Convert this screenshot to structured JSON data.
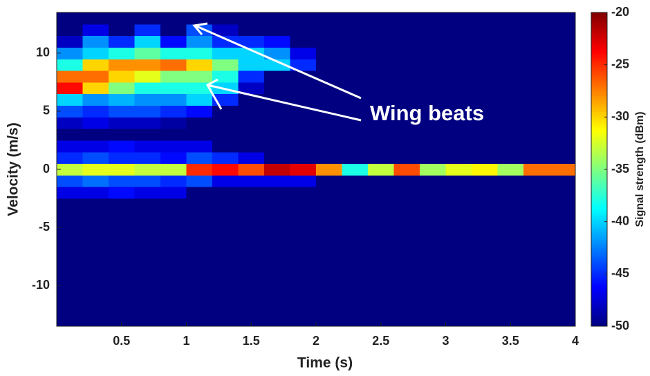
{
  "chart_data": {
    "type": "heatmap",
    "xlabel": "Time (s)",
    "ylabel": "Velocity (m/s)",
    "colorbar_label": "Signal strength (dBm)",
    "annotation": "Wing beats",
    "colormap": "jet",
    "clim": [
      -50,
      -20
    ],
    "cticks": [
      -20,
      -25,
      -30,
      -35,
      -40,
      -45,
      -50
    ],
    "xlim": [
      0,
      4
    ],
    "xticks": [
      0.5,
      1,
      1.5,
      2,
      2.5,
      3,
      3.5,
      4
    ],
    "ylim": [
      -13.5,
      13.5
    ],
    "yticks": [
      10,
      5,
      0,
      -5,
      -10
    ],
    "x_bins": [
      0,
      0.2,
      0.4,
      0.6,
      0.8,
      1,
      1.2,
      1.4,
      1.6,
      1.8,
      2,
      2.2,
      2.4,
      2.6,
      2.8,
      3,
      3.2,
      3.4,
      3.6,
      3.8,
      4
    ],
    "y_bins": [
      -13.5,
      -12.5,
      -11.5,
      -10.5,
      -9.5,
      -8.5,
      -7.5,
      -6.5,
      -5.5,
      -4.5,
      -3.5,
      -2.5,
      -1.5,
      -0.5,
      0.5,
      1.5,
      2.5,
      3.5,
      4.5,
      5.5,
      6.5,
      7.5,
      8.5,
      9.5,
      10.5,
      11.5,
      12.5,
      13.5
    ],
    "z": [
      [
        -50,
        -50,
        -50,
        -50,
        -50,
        -50,
        -50,
        -50,
        -50,
        -50,
        -50,
        -50,
        -50,
        -50,
        -50,
        -50,
        -50,
        -50,
        -50,
        -50
      ],
      [
        -50,
        -50,
        -50,
        -50,
        -50,
        -50,
        -50,
        -50,
        -50,
        -50,
        -50,
        -50,
        -50,
        -50,
        -50,
        -50,
        -50,
        -50,
        -50,
        -50
      ],
      [
        -50,
        -50,
        -50,
        -50,
        -50,
        -50,
        -50,
        -50,
        -50,
        -50,
        -50,
        -50,
        -50,
        -50,
        -50,
        -50,
        -50,
        -50,
        -50,
        -50
      ],
      [
        -50,
        -50,
        -50,
        -50,
        -50,
        -50,
        -50,
        -50,
        -50,
        -50,
        -50,
        -50,
        -50,
        -50,
        -50,
        -50,
        -50,
        -50,
        -50,
        -50
      ],
      [
        -50,
        -50,
        -50,
        -50,
        -50,
        -50,
        -50,
        -50,
        -50,
        -50,
        -50,
        -50,
        -50,
        -50,
        -50,
        -50,
        -50,
        -50,
        -50,
        -50
      ],
      [
        -50,
        -50,
        -50,
        -50,
        -50,
        -50,
        -50,
        -50,
        -50,
        -50,
        -50,
        -50,
        -50,
        -50,
        -50,
        -50,
        -50,
        -50,
        -50,
        -50
      ],
      [
        -50,
        -50,
        -50,
        -50,
        -50,
        -50,
        -50,
        -50,
        -50,
        -50,
        -50,
        -50,
        -50,
        -50,
        -50,
        -50,
        -50,
        -50,
        -50,
        -50
      ],
      [
        -50,
        -50,
        -50,
        -50,
        -50,
        -50,
        -50,
        -50,
        -50,
        -50,
        -50,
        -50,
        -50,
        -50,
        -50,
        -50,
        -50,
        -50,
        -50,
        -50
      ],
      [
        -50,
        -50,
        -50,
        -50,
        -50,
        -50,
        -50,
        -50,
        -50,
        -50,
        -50,
        -50,
        -50,
        -50,
        -50,
        -50,
        -50,
        -50,
        -50,
        -50
      ],
      [
        -50,
        -50,
        -50,
        -50,
        -50,
        -50,
        -50,
        -50,
        -50,
        -50,
        -50,
        -50,
        -50,
        -50,
        -50,
        -50,
        -50,
        -50,
        -50,
        -50
      ],
      [
        -50,
        -50,
        -50,
        -50,
        -50,
        -50,
        -50,
        -50,
        -50,
        -50,
        -50,
        -50,
        -50,
        -50,
        -50,
        -50,
        -50,
        -50,
        -50,
        -50
      ],
      [
        -47,
        -47,
        -46,
        -47,
        -47,
        -50,
        -50,
        -50,
        -50,
        -50,
        -50,
        -50,
        -50,
        -50,
        -50,
        -50,
        -50,
        -50,
        -50,
        -50
      ],
      [
        -44,
        -43,
        -44,
        -44,
        -45,
        -44,
        -47,
        -47,
        -47,
        -47,
        -50,
        -50,
        -50,
        -50,
        -50,
        -50,
        -50,
        -50,
        -50,
        -50
      ],
      [
        -33,
        -32,
        -32,
        -33,
        -33,
        -25,
        -24,
        -26,
        -22,
        -23,
        -28,
        -38,
        -33,
        -26,
        -34,
        -32,
        -31,
        -34,
        -27,
        -27
      ],
      [
        -45,
        -44,
        -45,
        -45,
        -46,
        -44,
        -45,
        -47,
        -50,
        -50,
        -50,
        -50,
        -50,
        -50,
        -50,
        -50,
        -50,
        -50,
        -50,
        -50
      ],
      [
        -47,
        -47,
        -46,
        -47,
        -47,
        -47,
        -50,
        -50,
        -50,
        -50,
        -50,
        -50,
        -50,
        -50,
        -50,
        -50,
        -50,
        -50,
        -50,
        -50
      ],
      [
        -50,
        -50,
        -50,
        -50,
        -50,
        -50,
        -50,
        -50,
        -50,
        -50,
        -50,
        -50,
        -50,
        -50,
        -50,
        -50,
        -50,
        -50,
        -50,
        -50
      ],
      [
        -48,
        -47,
        -48,
        -48,
        -49,
        -50,
        -50,
        -50,
        -50,
        -50,
        -50,
        -50,
        -50,
        -50,
        -50,
        -50,
        -50,
        -50,
        -50,
        -50
      ],
      [
        -44,
        -45,
        -44,
        -44,
        -45,
        -46,
        -50,
        -50,
        -50,
        -50,
        -50,
        -50,
        -50,
        -50,
        -50,
        -50,
        -50,
        -50,
        -50,
        -50
      ],
      [
        -40,
        -42,
        -41,
        -42,
        -42,
        -40,
        -45,
        -50,
        -50,
        -50,
        -50,
        -50,
        -50,
        -50,
        -50,
        -50,
        -50,
        -50,
        -50,
        -50
      ],
      [
        -24,
        -30,
        -35,
        -38,
        -38,
        -38,
        -40,
        -48,
        -50,
        -50,
        -50,
        -50,
        -50,
        -50,
        -50,
        -50,
        -50,
        -50,
        -50,
        -50
      ],
      [
        -27,
        -27,
        -30,
        -32,
        -35,
        -35,
        -38,
        -45,
        -50,
        -50,
        -50,
        -50,
        -50,
        -50,
        -50,
        -50,
        -50,
        -50,
        -50,
        -50
      ],
      [
        -38,
        -30,
        -28,
        -28,
        -27,
        -30,
        -35,
        -40,
        -40,
        -45,
        -50,
        -50,
        -50,
        -50,
        -50,
        -50,
        -50,
        -50,
        -50,
        -50
      ],
      [
        -42,
        -40,
        -38,
        -36,
        -38,
        -38,
        -40,
        -40,
        -42,
        -47,
        -50,
        -50,
        -50,
        -50,
        -50,
        -50,
        -50,
        -50,
        -50,
        -50
      ],
      [
        -48,
        -42,
        -45,
        -40,
        -46,
        -42,
        -45,
        -45,
        -46,
        -50,
        -50,
        -50,
        -50,
        -50,
        -50,
        -50,
        -50,
        -50,
        -50,
        -50
      ],
      [
        -50,
        -47,
        -50,
        -45,
        -50,
        -44,
        -48,
        -50,
        -50,
        -50,
        -50,
        -50,
        -50,
        -50,
        -50,
        -50,
        -50,
        -50,
        -50,
        -50
      ],
      [
        -50,
        -50,
        -50,
        -50,
        -50,
        -50,
        -50,
        -50,
        -50,
        -50,
        -50,
        -50,
        -50,
        -50,
        -50,
        -50,
        -50,
        -50,
        -50,
        -50
      ]
    ]
  }
}
